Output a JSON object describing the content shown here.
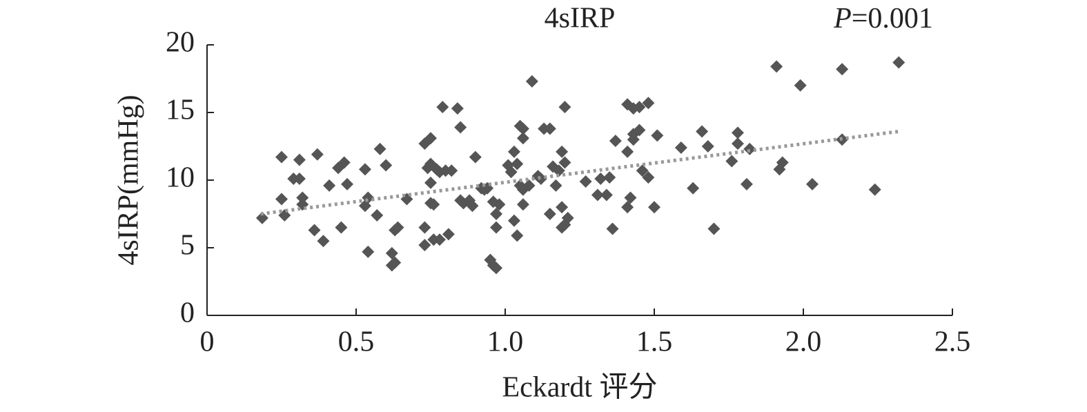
{
  "chart_data": {
    "type": "scatter",
    "title": "4sIRP",
    "p_value": {
      "symbol": "P",
      "text": "=0.001"
    },
    "x_label": "Eckardt 评分",
    "y_label": "4sIRP(mmHg)",
    "color": "#555555",
    "trendline_color": "#999999",
    "xlim": [
      0,
      2.5
    ],
    "ylim": [
      0,
      20
    ],
    "xticks": [
      0,
      0.5,
      {
        "value": 1,
        "label": "1.0"
      },
      1.5,
      {
        "value": 2,
        "label": "2.0"
      },
      2.5
    ],
    "yticks": [
      0,
      5,
      10,
      15,
      20
    ],
    "trendline": {
      "x": [
        0.18,
        2.32
      ],
      "y": [
        7.5,
        13.6
      ]
    },
    "x": [
      0.185,
      0.25,
      0.25,
      0.26,
      0.29,
      0.31,
      0.31,
      0.32,
      0.32,
      0.36,
      0.37,
      0.39,
      0.41,
      0.44,
      0.45,
      0.46,
      0.47,
      0.53,
      0.53,
      0.54,
      0.54,
      0.57,
      0.58,
      0.6,
      0.62,
      0.62,
      0.63,
      0.63,
      0.64,
      0.67,
      0.73,
      0.73,
      0.73,
      0.74,
      0.75,
      0.75,
      0.75,
      0.75,
      0.76,
      0.76,
      0.77,
      0.78,
      0.78,
      0.79,
      0.8,
      0.81,
      0.82,
      0.84,
      0.85,
      0.85,
      0.86,
      0.88,
      0.89,
      0.9,
      0.92,
      0.93,
      0.94,
      0.95,
      0.96,
      0.96,
      0.97,
      0.97,
      0.97,
      0.98,
      1.01,
      1.02,
      1.03,
      1.03,
      1.04,
      1.04,
      1.05,
      1.05,
      1.06,
      1.06,
      1.06,
      1.06,
      1.08,
      1.09,
      1.11,
      1.12,
      1.13,
      1.15,
      1.15,
      1.16,
      1.17,
      1.18,
      1.19,
      1.19,
      1.19,
      1.2,
      1.2,
      1.2,
      1.21,
      1.27,
      1.31,
      1.32,
      1.34,
      1.35,
      1.36,
      1.37,
      1.41,
      1.41,
      1.41,
      1.42,
      1.43,
      1.43,
      1.43,
      1.45,
      1.45,
      1.46,
      1.48,
      1.48,
      1.5,
      1.51,
      1.59,
      1.63,
      1.66,
      1.68,
      1.7,
      1.76,
      1.78,
      1.78,
      1.81,
      1.82,
      1.91,
      1.92,
      1.93,
      1.99,
      2.03,
      2.13,
      2.13,
      2.24,
      2.32
    ],
    "y": [
      7.2,
      11.7,
      8.6,
      7.4,
      10.1,
      11.5,
      10.1,
      8.7,
      8.2,
      6.3,
      11.9,
      5.5,
      9.6,
      10.9,
      6.5,
      11.3,
      9.7,
      10.8,
      8.1,
      8.7,
      4.7,
      7.4,
      12.3,
      11.1,
      4.6,
      3.7,
      3.9,
      6.3,
      6.5,
      8.6,
      6.5,
      12.7,
      5.2,
      10.9,
      13.1,
      8.3,
      11.2,
      9.8,
      5.6,
      8.2,
      10.8,
      10.6,
      5.6,
      15.4,
      10.7,
      6.0,
      10.7,
      15.3,
      13.9,
      8.5,
      8.3,
      8.5,
      8.1,
      11.7,
      9.4,
      9.3,
      9.4,
      4.1,
      8.4,
      3.7,
      7.5,
      3.5,
      6.5,
      8.2,
      11.1,
      10.6,
      7.0,
      12.1,
      11.2,
      5.9,
      14.0,
      9.6,
      13.8,
      13.1,
      9.3,
      8.2,
      9.6,
      17.3,
      10.3,
      10.1,
      13.8,
      7.5,
      13.8,
      11.0,
      9.6,
      10.7,
      8.0,
      6.5,
      12.1,
      11.3,
      15.4,
      6.7,
      7.2,
      9.9,
      8.9,
      10.1,
      8.9,
      10.2,
      6.4,
      12.9,
      15.6,
      12.1,
      8.0,
      8.7,
      15.3,
      13.0,
      13.4,
      15.4,
      13.7,
      10.7,
      15.7,
      10.2,
      8.0,
      13.3,
      12.4,
      9.4,
      13.6,
      12.5,
      6.4,
      11.4,
      12.7,
      13.5,
      9.7,
      12.3,
      18.4,
      10.8,
      11.3,
      17.0,
      9.7,
      18.2,
      13.0,
      9.3,
      18.7
    ]
  }
}
